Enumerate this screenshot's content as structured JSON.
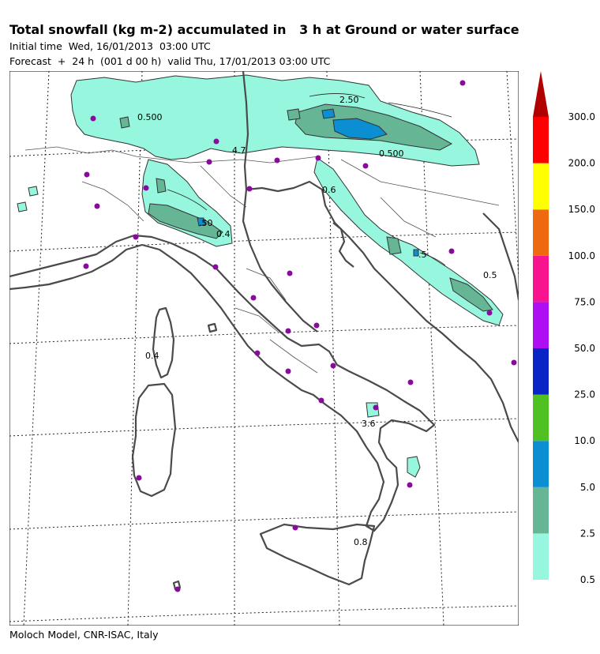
{
  "header": {
    "title": "Total snowfall (kg m-2) accumulated in   3 h at Ground or water surface",
    "initial_time": "Initial time  Wed, 16/01/2013  03:00 UTC",
    "forecast": "Forecast  +  24 h  (001 d 00 h)  valid Thu, 17/01/2013 03:00 UTC"
  },
  "footer": {
    "credit": "Moloch Model, CNR-ISAC, Italy"
  },
  "legend": {
    "levels": [
      "0.5",
      "2.5",
      "5.0",
      "10.0",
      "25.0",
      "50.0",
      "75.0",
      "100.0",
      "150.0",
      "200.0",
      "300.0"
    ],
    "colors": [
      "#96f7de",
      "#66b595",
      "#0c8ed2",
      "#4fc123",
      "#0a25c6",
      "#ae0ef2",
      "#f8148f",
      "#ef6a0e",
      "#ffff00",
      "#ff0000",
      "#b10000"
    ]
  },
  "contour_labels": [
    "2.50",
    "0.500",
    "0.500",
    "4.7",
    ".50",
    "0.4",
    "0.5",
    ".5",
    "0.8",
    "0.6",
    "3.6",
    "0.4"
  ],
  "colors": {
    "land_outline": "#4a4a4a",
    "sea": "#ffffff",
    "stations": "#8b0a9e"
  }
}
